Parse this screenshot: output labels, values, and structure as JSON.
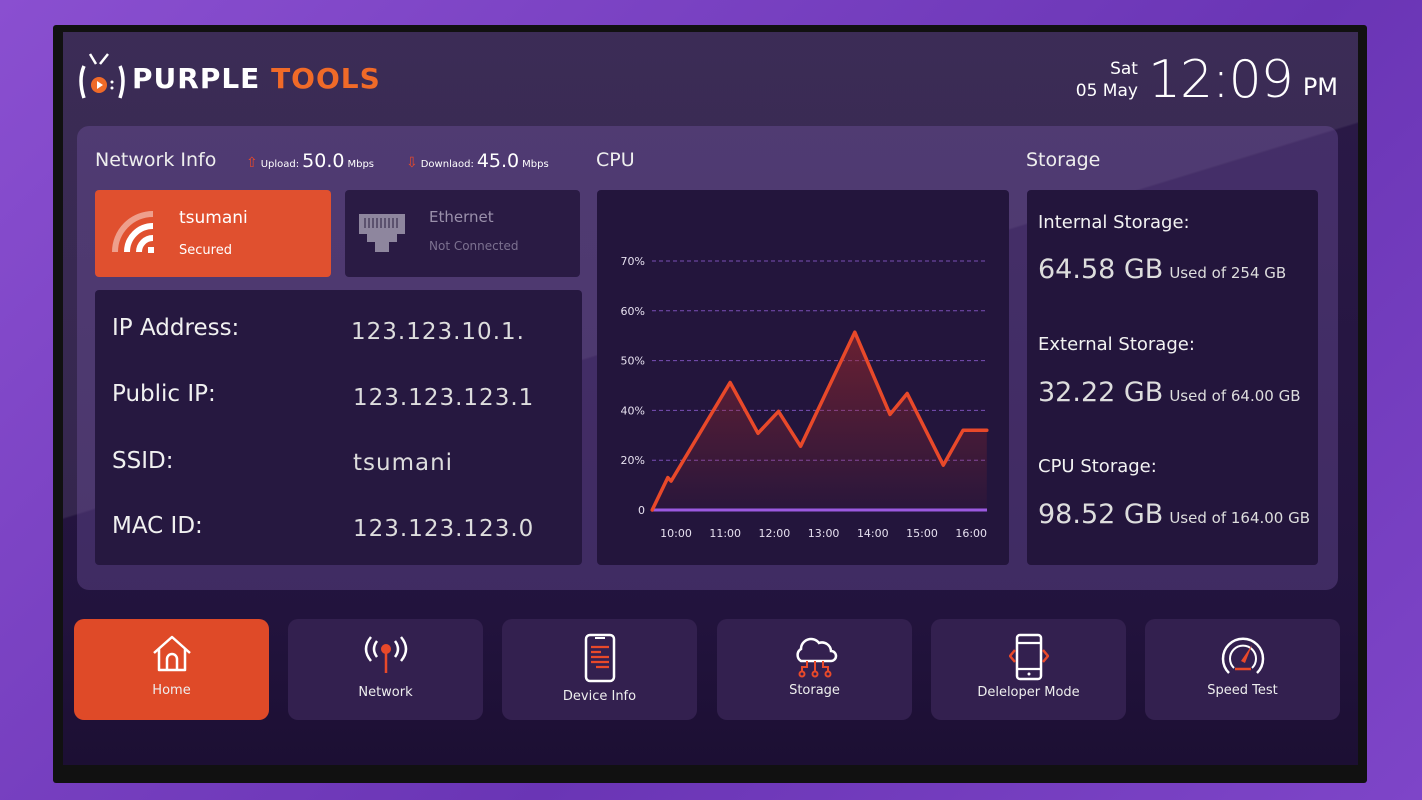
{
  "app": {
    "logo_white": "PURPLE",
    "logo_orange": "TOOLS"
  },
  "clock": {
    "day": "Sat",
    "date": "05 May",
    "time": "12:09",
    "ampm": "PM"
  },
  "network": {
    "title": "Network Info",
    "upload_label": "Upload:",
    "upload_value": "50.0",
    "upload_unit": "Mbps",
    "download_label": "Downlaod:",
    "download_value": "45.0",
    "download_unit": "Mbps",
    "wifi": {
      "name": "tsumani",
      "status": "Secured"
    },
    "ethernet": {
      "name": "Ethernet",
      "status": "Not Connected"
    },
    "details": [
      {
        "label": "IP Address:",
        "value": "123.123.10.1."
      },
      {
        "label": "Public IP:",
        "value": "123.123.123.1"
      },
      {
        "label": "SSID:",
        "value": "tsumani"
      },
      {
        "label": "MAC ID:",
        "value": "123.123.123.0"
      }
    ]
  },
  "cpu": {
    "title": "CPU"
  },
  "chart_data": {
    "type": "area",
    "title": "CPU",
    "x_ticks": [
      "10:00",
      "11:00",
      "12:00",
      "13:00",
      "14:00",
      "15:00",
      "16:00"
    ],
    "y_ticks": [
      {
        "value": 0,
        "label": "0"
      },
      {
        "value": 20,
        "label": "20%"
      },
      {
        "value": 40,
        "label": "40%"
      },
      {
        "value": 50,
        "label": "50%"
      },
      {
        "value": 60,
        "label": "60%"
      },
      {
        "value": 70,
        "label": "70%"
      }
    ],
    "grid": true,
    "line_color": "#e8492a",
    "axis_color": "#9b59e0",
    "points": [
      {
        "x": "9:31",
        "y": 0
      },
      {
        "x": "9:50",
        "y": 13
      },
      {
        "x": "9:54",
        "y": 11.6
      },
      {
        "x": "11:06",
        "y": 45.6
      },
      {
        "x": "11:40",
        "y": 30.8
      },
      {
        "x": "12:05",
        "y": 39.6
      },
      {
        "x": "12:32",
        "y": 25.6
      },
      {
        "x": "13:38",
        "y": 55.7
      },
      {
        "x": "14:21",
        "y": 38.4
      },
      {
        "x": "14:42",
        "y": 43.4
      },
      {
        "x": "15:26",
        "y": 18
      },
      {
        "x": "15:50",
        "y": 32
      },
      {
        "x": "16:19",
        "y": 32
      }
    ]
  },
  "storage": {
    "title": "Storage",
    "items": [
      {
        "label": "Internal Storage:",
        "used": "64.58 GB",
        "total": "Used of 254 GB"
      },
      {
        "label": "External  Storage:",
        "used": "32.22 GB",
        "total": "Used of 64.00 GB"
      },
      {
        "label": "CPU Storage:",
        "used": "98.52 GB",
        "total": "Used of 164.00 GB"
      }
    ]
  },
  "nav": [
    {
      "label": "Home",
      "icon": "home-icon",
      "active": true
    },
    {
      "label": "Network",
      "icon": "antenna-icon"
    },
    {
      "label": "Device Info",
      "icon": "phone-info-icon"
    },
    {
      "label": "Storage",
      "icon": "cloud-storage-icon"
    },
    {
      "label": "Deleloper Mode",
      "icon": "developer-phone-icon"
    },
    {
      "label": "Speed Test",
      "icon": "speedometer-icon"
    }
  ],
  "colors": {
    "accent": "#e0502f",
    "background": "#2b1a48",
    "panel": "#23153c"
  }
}
